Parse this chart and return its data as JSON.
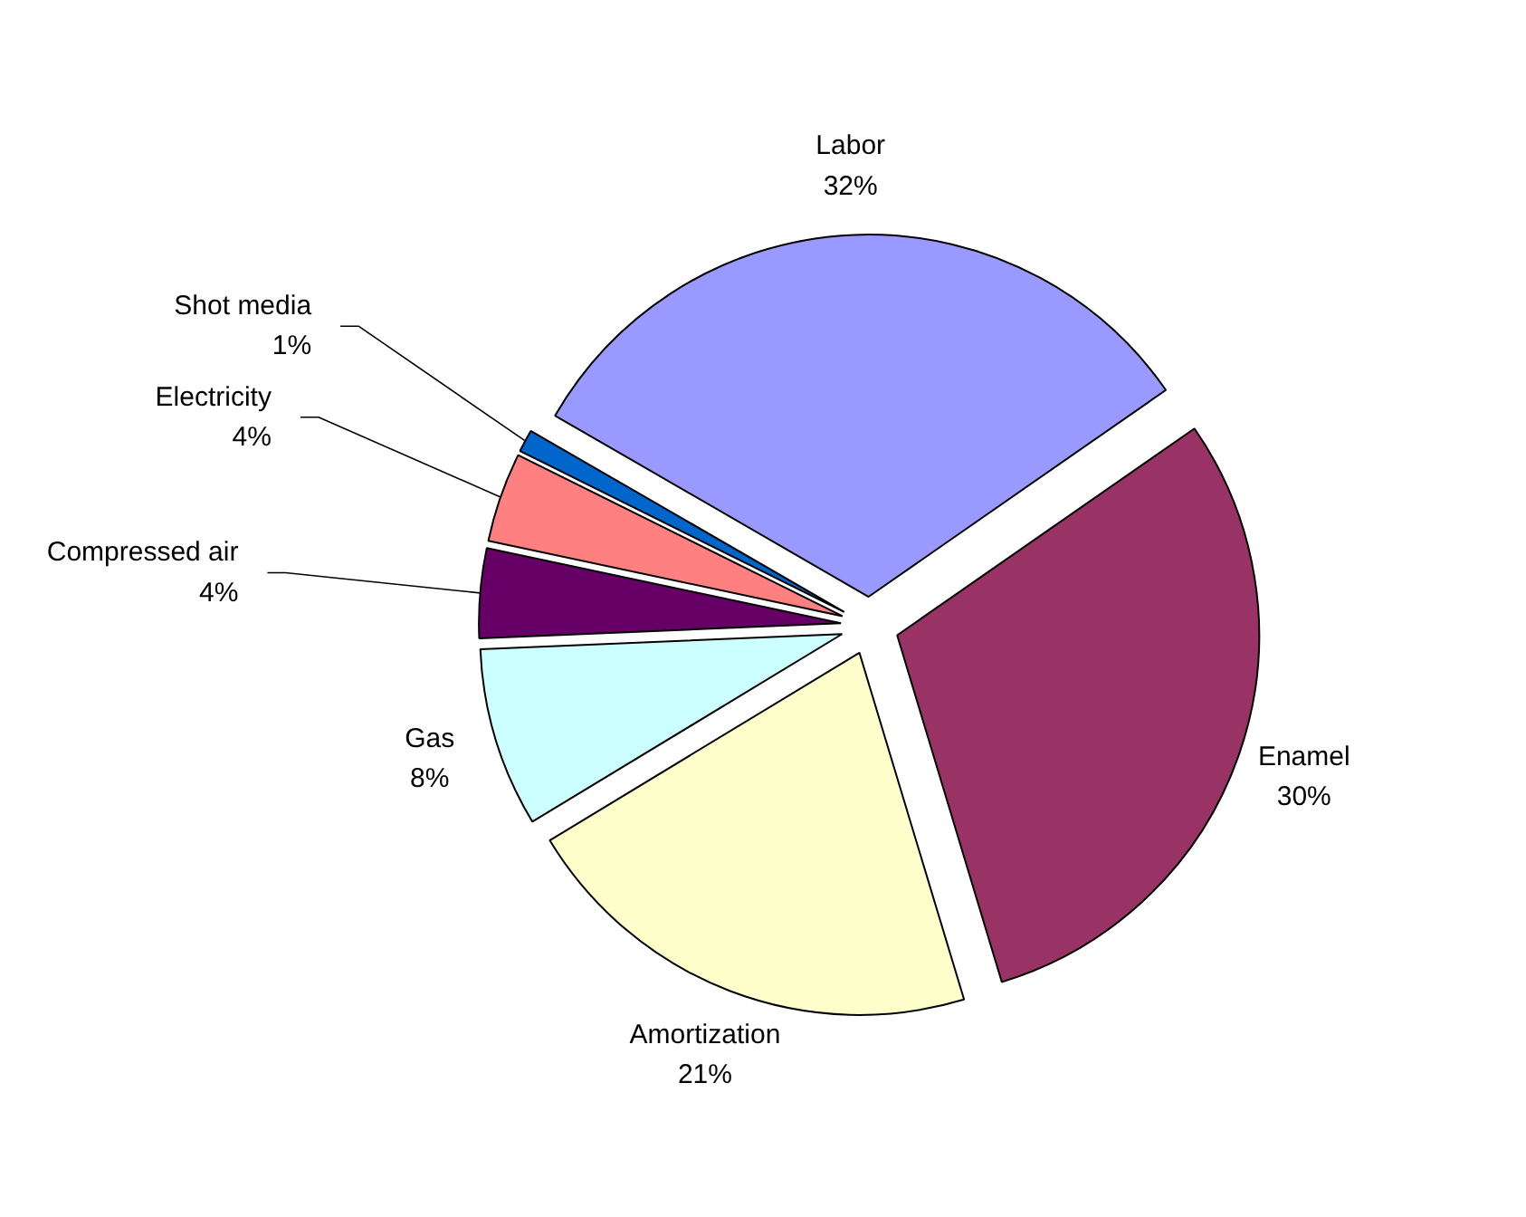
{
  "chart_data": {
    "type": "pie",
    "categories": [
      "Labor",
      "Enamel",
      "Amortization",
      "Gas",
      "Compressed air",
      "Electricity",
      "Shot media"
    ],
    "values": [
      32,
      30,
      21,
      8,
      4,
      4,
      1
    ],
    "value_labels": [
      "32%",
      "30%",
      "21%",
      "8%",
      "4%",
      "4%",
      "1%"
    ],
    "colors": [
      "#9999ff",
      "#993366",
      "#ffffcc",
      "#ccffff",
      "#660066",
      "#ff8080",
      "#0066cc"
    ],
    "legend": false
  }
}
